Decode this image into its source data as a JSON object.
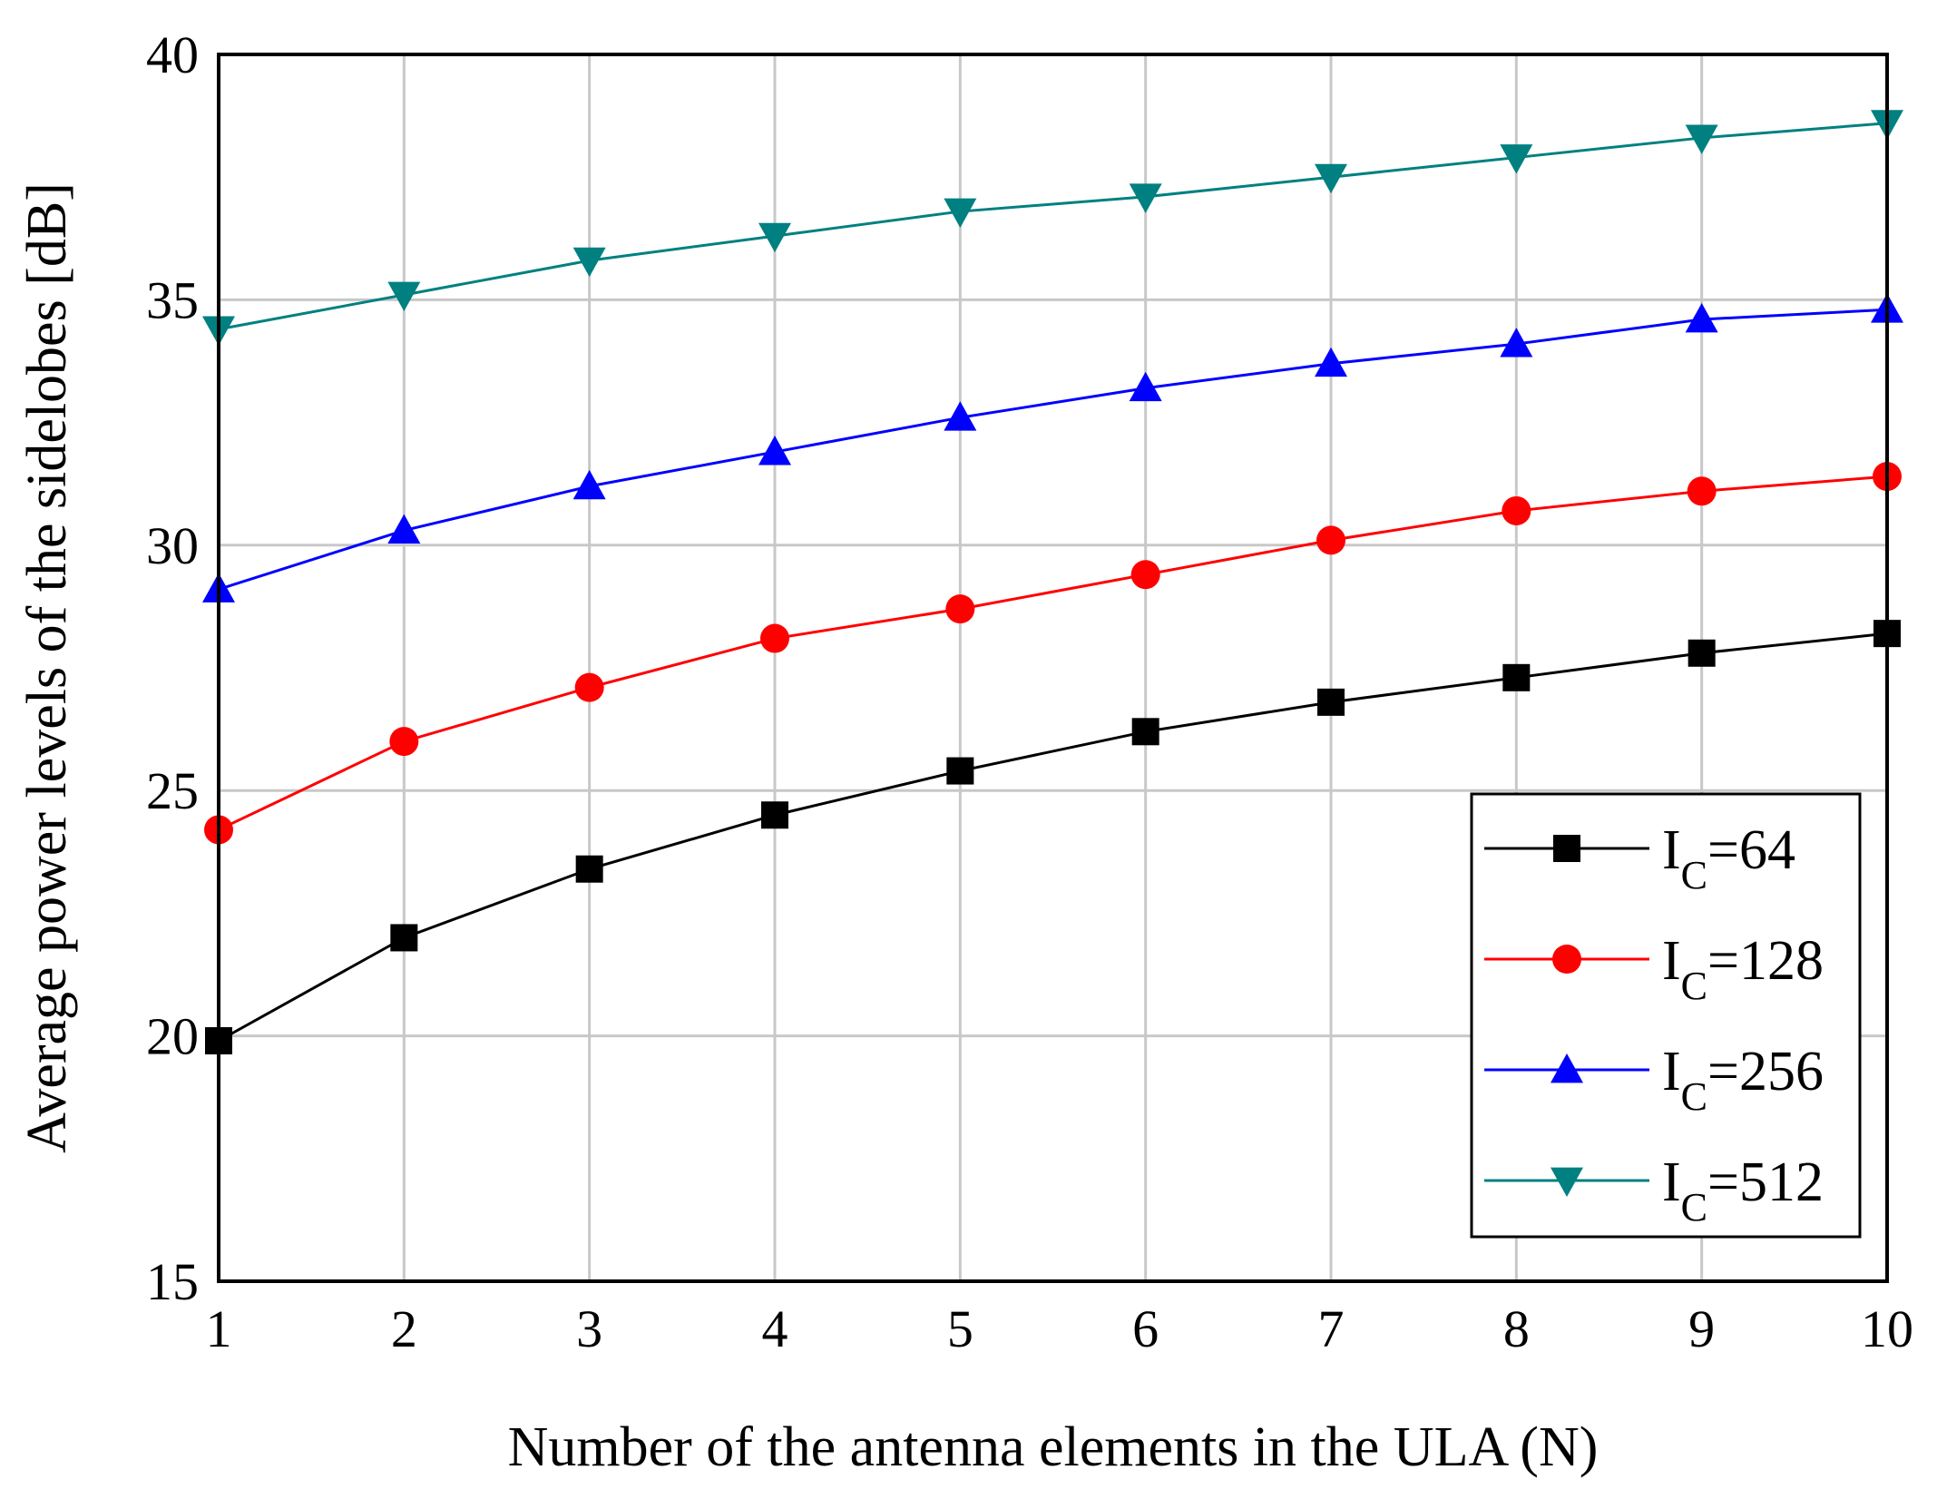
{
  "chart_data": {
    "type": "line",
    "title": "",
    "xlabel": "Number of the antenna elements in the ULA (N)",
    "ylabel": "Average power levels of the sidelobes [dB]",
    "x": [
      1,
      2,
      3,
      4,
      5,
      6,
      7,
      8,
      9,
      10
    ],
    "xlim": [
      1,
      10
    ],
    "ylim": [
      15,
      40
    ],
    "xticks": [
      "1",
      "2",
      "3",
      "4",
      "5",
      "6",
      "7",
      "8",
      "9",
      "10"
    ],
    "yticks": [
      "15",
      "20",
      "25",
      "30",
      "35",
      "40"
    ],
    "grid": true,
    "legend_position": "lower-right",
    "series": [
      {
        "name_main": "I",
        "name_sub": "C",
        "name_rest": "=64",
        "color": "#000000",
        "marker": "square",
        "values": [
          19.9,
          22.0,
          23.4,
          24.5,
          25.4,
          26.2,
          26.8,
          27.3,
          27.8,
          28.2
        ]
      },
      {
        "name_main": "I",
        "name_sub": "C",
        "name_rest": "=128",
        "color": "#ff0000",
        "marker": "circle",
        "values": [
          24.2,
          26.0,
          27.1,
          28.1,
          28.7,
          29.4,
          30.1,
          30.7,
          31.1,
          31.4
        ]
      },
      {
        "name_main": "I",
        "name_sub": "C",
        "name_rest": "=256",
        "color": "#0000ff",
        "marker": "triangle-up",
        "values": [
          29.1,
          30.3,
          31.2,
          31.9,
          32.6,
          33.2,
          33.7,
          34.1,
          34.6,
          34.8
        ]
      },
      {
        "name_main": "I",
        "name_sub": "C",
        "name_rest": "=512",
        "color": "#008080",
        "marker": "triangle-down",
        "values": [
          34.4,
          35.1,
          35.8,
          36.3,
          36.8,
          37.1,
          37.5,
          37.9,
          38.3,
          38.6
        ]
      }
    ]
  }
}
